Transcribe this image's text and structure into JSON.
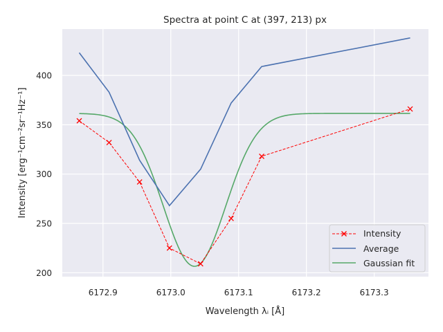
{
  "chart_data": {
    "type": "line",
    "title": "Spectra at point C at (397, 213) px",
    "xlabel": "Wavelength λᵢ [Å]",
    "ylabel": "Intensity [erg⁻¹cm⁻²sr⁻¹Hz⁻¹]",
    "xlim": [
      6172.84,
      6173.38
    ],
    "ylim": [
      196,
      447
    ],
    "xticks": [
      "6172.9",
      "6173.0",
      "6173.1",
      "6173.2",
      "6173.3"
    ],
    "xtick_values": [
      6172.9,
      6173.0,
      6173.1,
      6173.2,
      6173.3
    ],
    "yticks": [
      "200",
      "250",
      "300",
      "350",
      "400"
    ],
    "ytick_values": [
      200,
      250,
      300,
      350,
      400
    ],
    "grid": true,
    "legend_position": "lower-right",
    "series": [
      {
        "name": "Intensity",
        "style": "dashed-markers",
        "color": "#ff0000",
        "marker": "x",
        "x": [
          6172.865,
          6172.909,
          6172.954,
          6172.998,
          6173.044,
          6173.089,
          6173.134,
          6173.353
        ],
        "values": [
          354,
          332,
          292,
          225,
          209,
          255,
          318,
          366
        ]
      },
      {
        "name": "Average",
        "style": "solid",
        "color": "#4c72b0",
        "x": [
          6172.865,
          6172.909,
          6172.954,
          6172.998,
          6173.044,
          6173.089,
          6173.134,
          6173.353
        ],
        "values": [
          423,
          383,
          314,
          268,
          305,
          372,
          409,
          438
        ]
      },
      {
        "name": "Gaussian fit",
        "style": "solid",
        "color": "#55a868",
        "model": {
          "baseline": 361.5,
          "amplitude": -155,
          "center": 6173.035,
          "sigma": 0.046
        },
        "x_range": [
          6172.865,
          6173.353
        ]
      }
    ]
  }
}
